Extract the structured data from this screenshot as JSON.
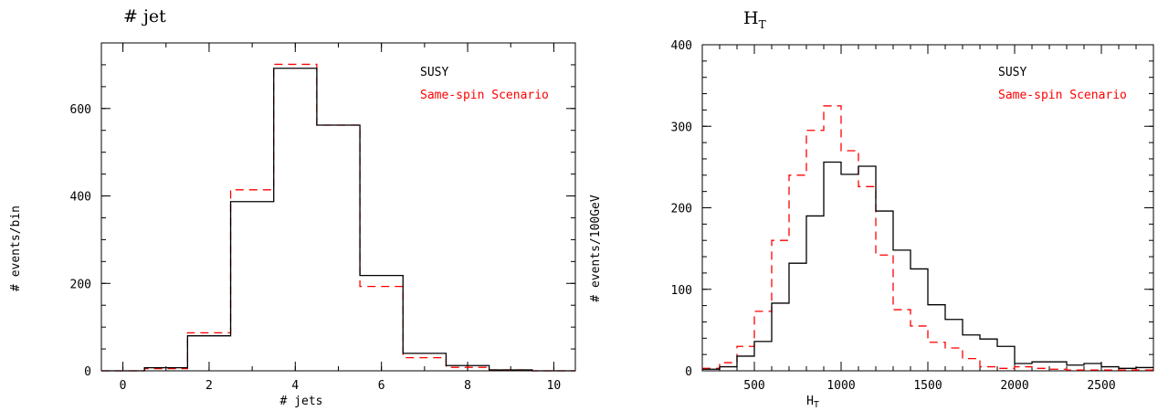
{
  "chart_data": [
    {
      "type": "histogram",
      "title": "# jet",
      "xlabel": "# jets",
      "ylabel": "# events/bin",
      "xlim": [
        -0.5,
        10.5
      ],
      "ylim": [
        0,
        750
      ],
      "xticks": [
        0,
        2,
        4,
        6,
        8,
        10
      ],
      "yticks": [
        0,
        200,
        400,
        600
      ],
      "grid": false,
      "legend_position": "top-right",
      "bin_edges": [
        -0.5,
        0.5,
        1.5,
        2.5,
        3.5,
        4.5,
        5.5,
        6.5,
        7.5,
        8.5,
        9.5,
        10.5
      ],
      "series": [
        {
          "name": "SUSY",
          "color": "#000000",
          "style": "solid",
          "values": [
            0,
            7,
            80,
            387,
            692,
            562,
            218,
            40,
            12,
            2,
            0
          ]
        },
        {
          "name": "Same-spin Scenario",
          "color": "#ff0000",
          "style": "dashed",
          "values": [
            0,
            5,
            87,
            414,
            701,
            562,
            193,
            30,
            8,
            2,
            0
          ]
        }
      ]
    },
    {
      "type": "histogram",
      "title": "H",
      "title_sub": "T",
      "xlabel": "H",
      "xlabel_sub": "T",
      "ylabel": "# events/100GeV",
      "xlim": [
        200,
        2800
      ],
      "ylim": [
        0,
        400
      ],
      "xticks": [
        500,
        1000,
        1500,
        2000,
        2500
      ],
      "yticks": [
        0,
        100,
        200,
        300,
        400
      ],
      "grid": false,
      "legend_position": "top-right",
      "bin_edges": [
        200,
        300,
        400,
        500,
        600,
        700,
        800,
        900,
        1000,
        1100,
        1200,
        1300,
        1400,
        1500,
        1600,
        1700,
        1800,
        1900,
        2000,
        2100,
        2200,
        2300,
        2400,
        2500,
        2600,
        2700,
        2800
      ],
      "series": [
        {
          "name": "SUSY",
          "color": "#000000",
          "style": "solid",
          "values": [
            2,
            5,
            18,
            36,
            83,
            132,
            190,
            256,
            241,
            251,
            196,
            148,
            125,
            81,
            63,
            44,
            39,
            30,
            9,
            11,
            11,
            7,
            9,
            5,
            3,
            4
          ]
        },
        {
          "name": "Same-spin Scenario",
          "color": "#ff0000",
          "style": "dashed",
          "values": [
            3,
            10,
            30,
            73,
            160,
            240,
            295,
            325,
            270,
            226,
            142,
            75,
            55,
            35,
            28,
            15,
            5,
            3,
            5,
            3,
            2,
            1,
            1,
            1,
            1,
            1
          ]
        }
      ]
    }
  ]
}
